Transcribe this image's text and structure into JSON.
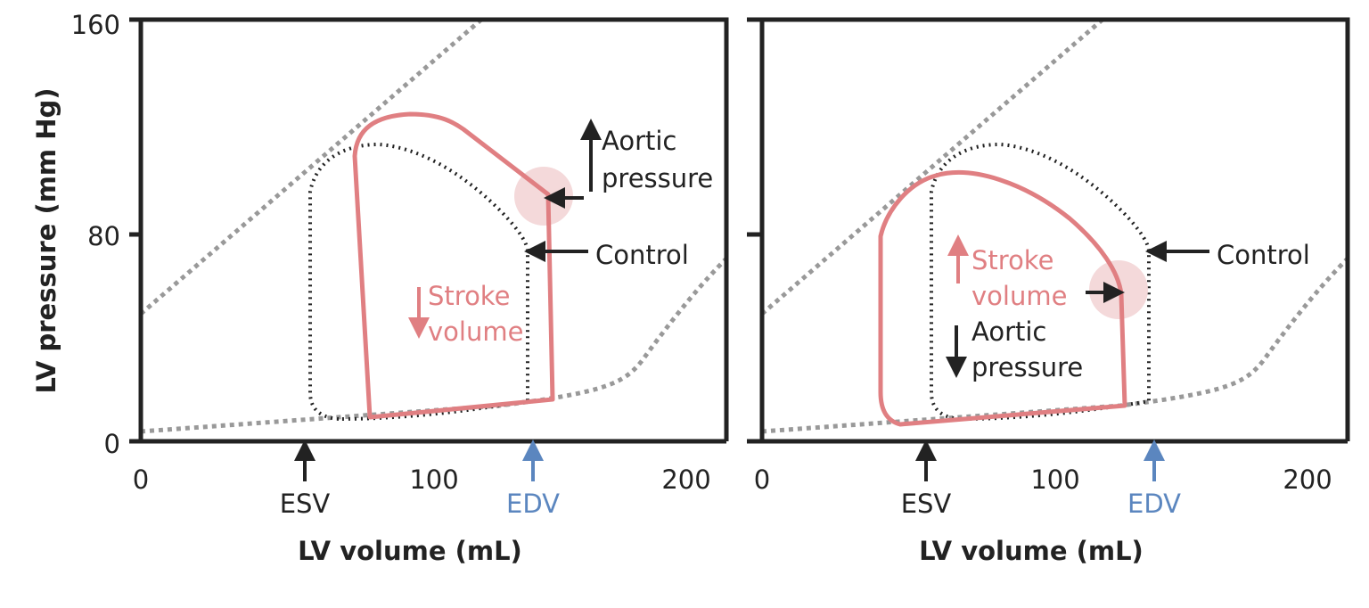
{
  "y_axis_label": "LV pressure (mm Hg)",
  "y_ticks": [
    "0",
    "80",
    "160"
  ],
  "panels": [
    {
      "x_ticks": [
        "0",
        "100",
        "200"
      ],
      "x_axis_label": "LV volume (mL)",
      "esv": "ESV",
      "edv": "EDV",
      "aortic_pressure": [
        "Aortic",
        "pressure"
      ],
      "control": "Control",
      "stroke_volume": [
        "Stroke",
        "volume"
      ]
    },
    {
      "x_ticks": [
        "0",
        "100",
        "200"
      ],
      "x_axis_label": "LV volume (mL)",
      "esv": "ESV",
      "edv": "EDV",
      "aortic_pressure": [
        "Aortic",
        "pressure"
      ],
      "control": "Control",
      "stroke_volume": [
        "Stroke",
        "volume"
      ]
    }
  ]
}
